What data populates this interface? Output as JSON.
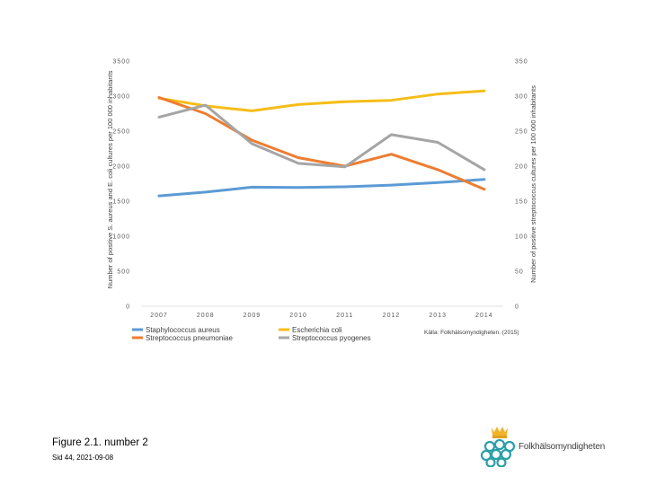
{
  "chart_data": {
    "type": "line",
    "categories": [
      "2007",
      "2008",
      "2009",
      "2010",
      "2011",
      "2012",
      "2013",
      "2014"
    ],
    "left_axis": {
      "label": "Number of positive S. aureus and E. coli cultures per 100 000 inhabitants",
      "ylim": [
        0,
        3500
      ],
      "ticks": [
        "0",
        "500",
        "1000",
        "1500",
        "2000",
        "2500",
        "3000",
        "3500"
      ]
    },
    "right_axis": {
      "label": "Number of positive streptococcus cultures per 100 000 inhabitants",
      "ylim": [
        0,
        350
      ],
      "ticks": [
        "0",
        "50",
        "100",
        "150",
        "200",
        "250",
        "300",
        "350"
      ]
    },
    "series": [
      {
        "name": "Staphylococcus aureus",
        "axis": "left",
        "color": "#5B9BD5",
        "values": [
          1575,
          1630,
          1700,
          1695,
          1705,
          1730,
          1765,
          1810
        ]
      },
      {
        "name": "Escherichia coli",
        "axis": "left",
        "color": "#F5BD19",
        "values": [
          2970,
          2860,
          2790,
          2880,
          2920,
          2940,
          3030,
          3075
        ]
      },
      {
        "name": "Streptococcus pneumoniae",
        "axis": "right",
        "color": "#ED7D31",
        "values": [
          298,
          275,
          237,
          212,
          200,
          217,
          195,
          167
        ]
      },
      {
        "name": "Streptococcus pyogenes",
        "axis": "right",
        "color": "#A5A5A5",
        "values": [
          270,
          287,
          232,
          204,
          199,
          245,
          234,
          195
        ]
      }
    ],
    "source": "Källa: Folkhälsomyndigheten. (2015)",
    "gridlines": false,
    "legend_position": "bottom"
  },
  "caption": "Figure 2.1. number 2",
  "slide_ref": "Sid 44, 2021-09-08",
  "logo": {
    "text": "Folkhälsomyndigheten"
  }
}
